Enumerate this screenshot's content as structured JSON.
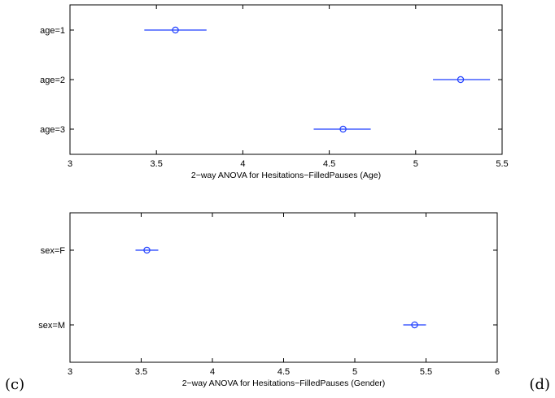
{
  "chart_data": [
    {
      "type": "scatter",
      "title": "",
      "xlabel": "2−way ANOVA for Hesitations−FilledPauses (Age)",
      "ylabel": "",
      "xlim": [
        3,
        5.5
      ],
      "xticks": [
        "3",
        "3.5",
        "4",
        "4.5",
        "5",
        "5.5"
      ],
      "xtick_values": [
        3,
        3.5,
        4,
        4.5,
        5,
        5.5
      ],
      "color": "#1f3fff",
      "marker": "circle",
      "error_bars": "horizontal",
      "groups": [
        {
          "label": "age=1",
          "mean": 3.61,
          "low": 3.43,
          "high": 3.79
        },
        {
          "label": "age=2",
          "mean": 5.26,
          "low": 5.1,
          "high": 5.43
        },
        {
          "label": "age=3",
          "mean": 4.58,
          "low": 4.41,
          "high": 4.74
        }
      ]
    },
    {
      "type": "scatter",
      "title": "",
      "xlabel": "2−way ANOVA for Hesitations−FilledPauses (Gender)",
      "ylabel": "",
      "xlim": [
        3,
        6
      ],
      "xticks": [
        "3",
        "3.5",
        "4",
        "4.5",
        "5",
        "5.5",
        "6"
      ],
      "xtick_values": [
        3,
        3.5,
        4,
        4.5,
        5,
        5.5,
        6
      ],
      "color": "#1f3fff",
      "marker": "circle",
      "error_bars": "horizontal",
      "groups": [
        {
          "label": "sex=F",
          "mean": 3.54,
          "low": 3.46,
          "high": 3.62
        },
        {
          "label": "sex=M",
          "mean": 5.42,
          "low": 5.34,
          "high": 5.5
        }
      ]
    }
  ],
  "panel_labels": {
    "left": "(c)",
    "right": "(d)"
  }
}
